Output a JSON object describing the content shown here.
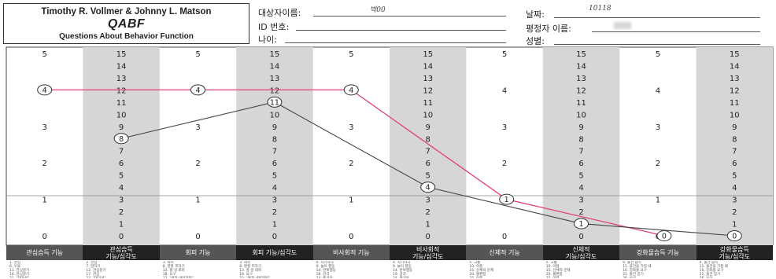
{
  "header": {
    "authors": "Timothy R. Vollmer & Johnny L. Matson",
    "title": "QABF",
    "subtitle": "Questions About Behavior Function"
  },
  "fields": {
    "name_label": "대상자이름:",
    "name_value": "박00",
    "date_label": "날짜:",
    "date_value": "10118",
    "id_label": "ID 번호:",
    "rater_label": "평정자 이름:",
    "age_label": "나이:",
    "sex_label": "성별:"
  },
  "columns": [
    {
      "label": "관심습득 기능",
      "scale_max": 5,
      "shaded": false
    },
    {
      "label": "관심습득\n기능/심각도",
      "scale_max": 15,
      "shaded": true
    },
    {
      "label": "회피 기능",
      "scale_max": 5,
      "shaded": false
    },
    {
      "label": "회피 기능/심각도",
      "scale_max": 15,
      "shaded": true
    },
    {
      "label": "비사회적 기능",
      "scale_max": 5,
      "shaded": false
    },
    {
      "label": "비사회적\n기능/심각도",
      "scale_max": 15,
      "shaded": true
    },
    {
      "label": "신체적 기능",
      "scale_max": 5,
      "shaded": false
    },
    {
      "label": "신체적\n기능/심각도",
      "scale_max": 15,
      "shaded": true
    },
    {
      "label": "강화물습득 기능",
      "scale_max": 5,
      "shaded": false
    },
    {
      "label": "강화물습득\n기능/심각도",
      "scale_max": 15,
      "shaded": true
    }
  ],
  "chart_data": {
    "type": "line",
    "categories": [
      "관심습득",
      "회피",
      "비사회적",
      "신체적",
      "강화물습득"
    ],
    "series": [
      {
        "values": [
          4,
          4,
          4,
          1,
          0
        ],
        "axis": "function 0-5",
        "color": "#e0407a"
      },
      {
        "values": [
          8,
          11,
          4,
          1,
          0
        ],
        "axis": "severity 0-15",
        "color": "#444444"
      }
    ],
    "ylim_function": [
      0,
      5
    ],
    "ylim_severity": [
      0,
      15
    ]
  },
  "footer_items": [
    "1. 관심\n6. 우울\n11. 관심끌기\n16. 관심끌기\n21. \"대가성\"",
    "2. 관심\n7. 말하기\n12. 관심끌기\n17. 관심\n22. \"대가성\"",
    "3. 회피\n8. 말할 피하기\n13. 할 일 회피\n18. 요구\n23. \"혼자 내버려둬\"",
    "3. 회피\n8. 말할 피하기\n13. 할 일 회피\n18. 요구\n23. \"혼자 내버려둬\"",
    "4. 자기자극\n9. 놀이 행동\n14. 반복행동\n19. 감각\n24. 즐거움",
    "4. 자기자극\n9. 놀이 행동\n14. 반복행동\n19. 감각\n24. 즐거움",
    "5. 고통\n10. 아픔\n15. 신체적 문제\n20. 불편함\n25. 아픔",
    "5. 고통\n10. 아픔\n15. 신체적 문제\n20. 불편함\n25. 아픔",
    "6. 물건 습득\n11. 물건을 가질 때\n16. 강화물 요구\n21. 물건 얻기\n26. 보상",
    "6. 물건 습득\n11. 물건을 가질 때\n16. 강화물 요구\n21. 물건 얻기\n26. 보상"
  ]
}
